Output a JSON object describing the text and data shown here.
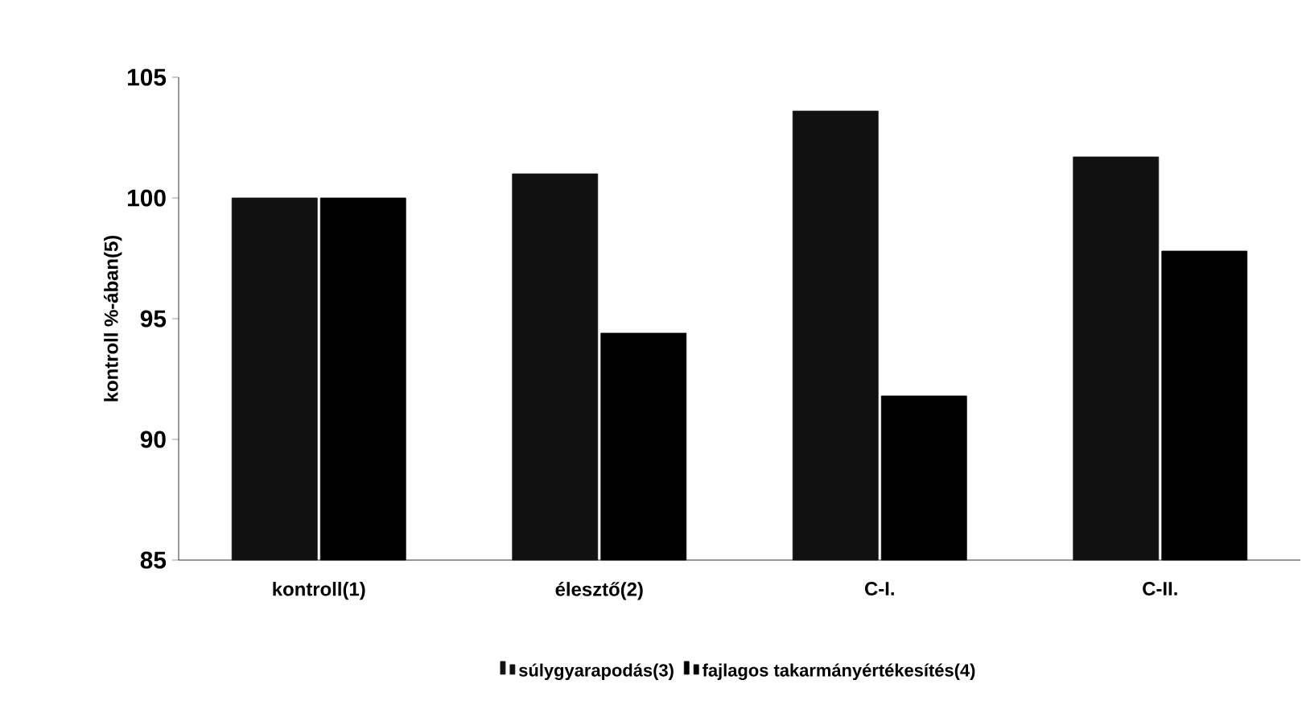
{
  "chart_data": {
    "type": "bar",
    "ylabel": "kontroll %-ában(5)",
    "categories": [
      "kontroll(1)",
      "élesztő(2)",
      "C-I.",
      "C-II."
    ],
    "series": [
      {
        "name": "súlygyarapodás(3)",
        "color": "#111111",
        "values": [
          100,
          101,
          103.6,
          101.7
        ]
      },
      {
        "name": "fajlagos takarmányértékesítés(4)",
        "color": "#000000",
        "values": [
          100,
          94.4,
          91.8,
          97.8
        ]
      }
    ],
    "ylim": [
      85,
      105
    ],
    "yticks": [
      85,
      90,
      95,
      100,
      105
    ],
    "legend": "bottom",
    "grid": false
  }
}
